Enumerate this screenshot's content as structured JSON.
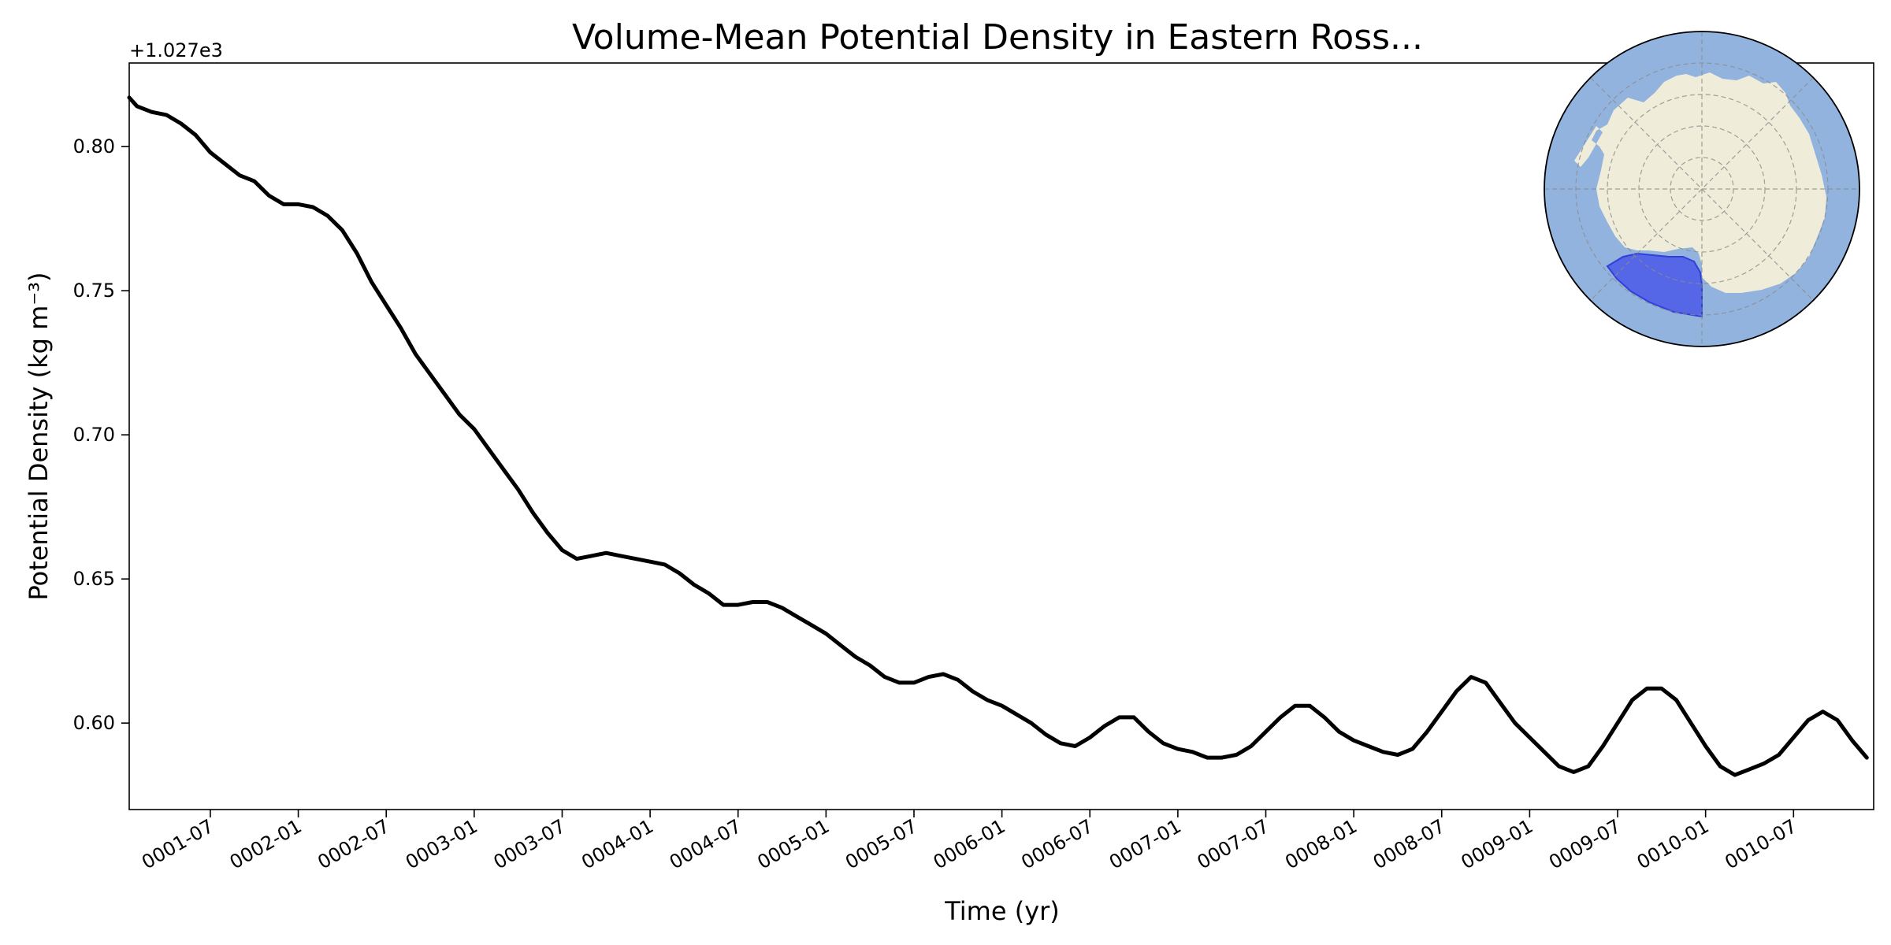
{
  "chart_data": {
    "type": "line",
    "title": "Volume-Mean Potential Density in Eastern Ross...",
    "xlabel": "Time (yr)",
    "ylabel": "Potential Density (kg m⁻³)",
    "y_offset_label": "+1.027e3",
    "y_ticks": [
      "0.60",
      "0.65",
      "0.70",
      "0.75",
      "0.80"
    ],
    "ylim": [
      0.57,
      0.829
    ],
    "x_ticks": [
      "0001-07",
      "0002-01",
      "0002-07",
      "0003-01",
      "0003-07",
      "0004-01",
      "0004-07",
      "0005-01",
      "0005-07",
      "0006-01",
      "0006-07",
      "0007-01",
      "0007-07",
      "0008-01",
      "0008-07",
      "0009-01",
      "0009-07",
      "0010-01",
      "0010-07"
    ],
    "xlim": [
      "0001-01-15",
      "0010-12-15"
    ],
    "grid": false,
    "series": [
      {
        "color": "#000000",
        "x": [
          "0001-01",
          "0001-02",
          "0001-03",
          "0001-04",
          "0001-05",
          "0001-06",
          "0001-07",
          "0001-08",
          "0001-09",
          "0001-10",
          "0001-11",
          "0001-12",
          "0002-01",
          "0002-02",
          "0002-03",
          "0002-04",
          "0002-05",
          "0002-06",
          "0002-07",
          "0002-08",
          "0002-09",
          "0002-10",
          "0002-11",
          "0002-12",
          "0003-01",
          "0003-02",
          "0003-03",
          "0003-04",
          "0003-05",
          "0003-06",
          "0003-07",
          "0003-08",
          "0003-09",
          "0003-10",
          "0003-11",
          "0003-12",
          "0004-01",
          "0004-02",
          "0004-03",
          "0004-04",
          "0004-05",
          "0004-06",
          "0004-07",
          "0004-08",
          "0004-09",
          "0004-10",
          "0004-11",
          "0004-12",
          "0005-01",
          "0005-02",
          "0005-03",
          "0005-04",
          "0005-05",
          "0005-06",
          "0005-07",
          "0005-08",
          "0005-09",
          "0005-10",
          "0005-11",
          "0005-12",
          "0006-01",
          "0006-02",
          "0006-03",
          "0006-04",
          "0006-05",
          "0006-06",
          "0006-07",
          "0006-08",
          "0006-09",
          "0006-10",
          "0006-11",
          "0006-12",
          "0007-01",
          "0007-02",
          "0007-03",
          "0007-04",
          "0007-05",
          "0007-06",
          "0007-07",
          "0007-08",
          "0007-09",
          "0007-10",
          "0007-11",
          "0007-12",
          "0008-01",
          "0008-02",
          "0008-03",
          "0008-04",
          "0008-05",
          "0008-06",
          "0008-07",
          "0008-08",
          "0008-09",
          "0008-10",
          "0008-11",
          "0008-12",
          "0009-01",
          "0009-02",
          "0009-03",
          "0009-04",
          "0009-05",
          "0009-06",
          "0009-07",
          "0009-08",
          "0009-09",
          "0009-10",
          "0009-11",
          "0009-12",
          "0010-01",
          "0010-02",
          "0010-03",
          "0010-04",
          "0010-05",
          "0010-06",
          "0010-07",
          "0010-08",
          "0010-09",
          "0010-10",
          "0010-11",
          "0010-12"
        ],
        "values": [
          0.817,
          0.814,
          0.812,
          0.811,
          0.808,
          0.804,
          0.798,
          0.794,
          0.79,
          0.788,
          0.783,
          0.78,
          0.78,
          0.779,
          0.776,
          0.771,
          0.763,
          0.753,
          0.745,
          0.737,
          0.728,
          0.721,
          0.714,
          0.707,
          0.702,
          0.695,
          0.688,
          0.681,
          0.673,
          0.666,
          0.66,
          0.657,
          0.658,
          0.659,
          0.658,
          0.657,
          0.656,
          0.655,
          0.652,
          0.648,
          0.645,
          0.641,
          0.641,
          0.642,
          0.642,
          0.64,
          0.637,
          0.634,
          0.631,
          0.627,
          0.623,
          0.62,
          0.616,
          0.614,
          0.614,
          0.616,
          0.617,
          0.615,
          0.611,
          0.608,
          0.606,
          0.603,
          0.6,
          0.596,
          0.593,
          0.592,
          0.595,
          0.599,
          0.602,
          0.602,
          0.597,
          0.593,
          0.591,
          0.59,
          0.588,
          0.588,
          0.589,
          0.592,
          0.597,
          0.602,
          0.606,
          0.606,
          0.602,
          0.597,
          0.594,
          0.592,
          0.59,
          0.589,
          0.591,
          0.597,
          0.604,
          0.611,
          0.616,
          0.614,
          0.607,
          0.6,
          0.595,
          0.59,
          0.585,
          0.583,
          0.585,
          0.592,
          0.6,
          0.608,
          0.612,
          0.612,
          0.608,
          0.6,
          0.592,
          0.585,
          0.582,
          0.584,
          0.586,
          0.589,
          0.595,
          0.601,
          0.604,
          0.601,
          0.594,
          0.588
        ]
      }
    ],
    "inset_map": {
      "ocean_color": "#93b3df",
      "land_color": "#efedda",
      "region_color": "#4f5ee8"
    }
  }
}
